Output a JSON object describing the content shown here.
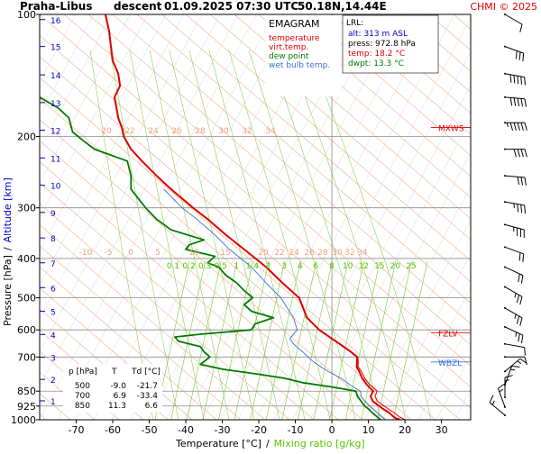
{
  "header": {
    "station": "Praha-Libus",
    "type": "descent",
    "datetime": "01.09.2025 07:30 UTC",
    "coords": "50.18N,14.44E",
    "credit": "CHMI © 2025"
  },
  "legend": {
    "title": "EMAGRAM",
    "items": [
      {
        "label": "temperature",
        "color": "#e00000"
      },
      {
        "label": "virt.temp.",
        "color": "#e00000"
      },
      {
        "label": "dew point",
        "color": "#007a00"
      },
      {
        "label": "wet bulb temp.",
        "color": "#3a6fd8"
      }
    ]
  },
  "lrl": {
    "title": "LRL:",
    "alt": "alt: 313 m ASL",
    "press": "press: 972.8 hPa",
    "temp": "temp: 18.2 °C",
    "dwpt": "dwpt: 13.3 °C",
    "colors": {
      "alt": "#0000cc",
      "press": "#000000",
      "temp": "#e00000",
      "dwpt": "#007a00"
    }
  },
  "table": {
    "headers": [
      "p [hPa]",
      "T",
      "Td [°C]"
    ],
    "rows": [
      [
        "500",
        "-9.0",
        "-21.7"
      ],
      [
        "700",
        "6.9",
        "-33.4"
      ],
      [
        "850",
        "11.3",
        "6.6"
      ]
    ]
  },
  "levels": [
    {
      "label": "MXWS",
      "p": 190
    },
    {
      "label": "FZLV",
      "p": 610
    },
    {
      "label": "WBZL",
      "p": 720
    }
  ],
  "chart_data": {
    "type": "line",
    "title": "",
    "xlabel": "Temperature [°C]",
    "xlabel_sep": "/",
    "xlabel2": "Mixing ratio [g/kg]",
    "ylabel": "Pressure [hPa]",
    "ylabel_sep": "/",
    "ylabel2": "Altitude [km]",
    "xlim": [
      -80,
      38
    ],
    "ylim": [
      1000,
      100
    ],
    "y_scale": "log",
    "x_ticks": [
      -70,
      -60,
      -50,
      -40,
      -30,
      -20,
      -10,
      0,
      10,
      20,
      30
    ],
    "p_ticks": [
      100,
      200,
      300,
      400,
      500,
      600,
      700,
      850,
      925,
      1000
    ],
    "km_ticks": [
      {
        "km": "1",
        "p": 898
      },
      {
        "km": "2",
        "p": 795
      },
      {
        "km": "3",
        "p": 701
      },
      {
        "km": "4",
        "p": 616
      },
      {
        "km": "5",
        "p": 540
      },
      {
        "km": "6",
        "p": 472
      },
      {
        "km": "7",
        "p": 410
      },
      {
        "km": "8",
        "p": 356
      },
      {
        "km": "9",
        "p": 308
      },
      {
        "km": "10",
        "p": 264
      },
      {
        "km": "11",
        "p": 226
      },
      {
        "km": "12",
        "p": 193
      },
      {
        "km": "13",
        "p": 165
      },
      {
        "km": "14",
        "p": 141
      },
      {
        "km": "15",
        "p": 120
      },
      {
        "km": "16",
        "p": 103
      }
    ],
    "mixing_ratio_labels": [
      "0.1",
      "0.2",
      "0.3",
      "0.5",
      "1",
      "1.4",
      "2",
      "3",
      "4",
      "6",
      "8",
      "10",
      "12",
      "15",
      "20",
      "25"
    ],
    "dry_adiabat_labels_upper": [
      "20",
      "22",
      "24",
      "26",
      "28",
      "30",
      "32",
      "34"
    ],
    "dry_adiabat_labels_lower": [
      "-10",
      "-5",
      "0",
      "5",
      "10",
      "15",
      "20",
      "22",
      "24",
      "26",
      "28",
      "30",
      "32",
      "34"
    ],
    "series": [
      {
        "name": "temperature",
        "color": "#e00000",
        "points": [
          [
            1000,
            18.2
          ],
          [
            985,
            17
          ],
          [
            960,
            15.6
          ],
          [
            940,
            14
          ],
          [
            925,
            13
          ],
          [
            900,
            11.2
          ],
          [
            875,
            10.6
          ],
          [
            850,
            11.3
          ],
          [
            820,
            9.6
          ],
          [
            790,
            8.3
          ],
          [
            760,
            7.5
          ],
          [
            740,
            6.8
          ],
          [
            720,
            6.9
          ],
          [
            700,
            6.9
          ],
          [
            680,
            5.2
          ],
          [
            650,
            2.1
          ],
          [
            600,
            -3.5
          ],
          [
            560,
            -6.8
          ],
          [
            500,
            -9
          ],
          [
            460,
            -13.5
          ],
          [
            420,
            -18
          ],
          [
            380,
            -24
          ],
          [
            350,
            -29
          ],
          [
            320,
            -34
          ],
          [
            300,
            -38
          ],
          [
            270,
            -44
          ],
          [
            250,
            -48
          ],
          [
            230,
            -52
          ],
          [
            215,
            -55
          ],
          [
            200,
            -57
          ],
          [
            190,
            -57.5
          ],
          [
            180,
            -58.5
          ],
          [
            170,
            -59
          ],
          [
            160,
            -59.5
          ],
          [
            150,
            -58
          ],
          [
            140,
            -58.5
          ],
          [
            130,
            -60
          ],
          [
            120,
            -60.5
          ],
          [
            110,
            -61
          ],
          [
            100,
            -62
          ]
        ]
      },
      {
        "name": "virt.temp.",
        "color": "#e00000",
        "points": [
          [
            1000,
            20
          ],
          [
            985,
            18.6
          ],
          [
            960,
            17
          ],
          [
            940,
            15.4
          ],
          [
            925,
            14.3
          ],
          [
            900,
            12.5
          ],
          [
            875,
            11.8
          ],
          [
            850,
            12.4
          ],
          [
            820,
            10.4
          ],
          [
            790,
            9
          ],
          [
            760,
            8.1
          ],
          [
            740,
            7.2
          ],
          [
            720,
            7.2
          ],
          [
            700,
            7.1
          ],
          [
            680,
            5.4
          ],
          [
            650,
            2.3
          ],
          [
            600,
            -3.4
          ],
          [
            560,
            -6.7
          ],
          [
            500,
            -8.9
          ],
          [
            460,
            -13.4
          ],
          [
            420,
            -17.9
          ],
          [
            380,
            -23.9
          ],
          [
            350,
            -28.9
          ],
          [
            320,
            -33.9
          ],
          [
            300,
            -37.9
          ],
          [
            270,
            -43.9
          ],
          [
            250,
            -47.9
          ],
          [
            230,
            -51.9
          ],
          [
            215,
            -54.9
          ],
          [
            200,
            -56.9
          ],
          [
            190,
            -57.4
          ],
          [
            180,
            -58.4
          ],
          [
            170,
            -58.9
          ],
          [
            160,
            -59.4
          ],
          [
            150,
            -57.9
          ],
          [
            140,
            -58.4
          ],
          [
            130,
            -59.9
          ],
          [
            120,
            -60.4
          ],
          [
            110,
            -60.9
          ],
          [
            100,
            -61.9
          ]
        ]
      },
      {
        "name": "dew point",
        "color": "#007a00",
        "points": [
          [
            1000,
            13.3
          ],
          [
            985,
            12.5
          ],
          [
            960,
            11
          ],
          [
            940,
            10
          ],
          [
            925,
            9
          ],
          [
            900,
            8
          ],
          [
            875,
            7
          ],
          [
            850,
            6.6
          ],
          [
            830,
            0
          ],
          [
            810,
            -8
          ],
          [
            790,
            -13
          ],
          [
            770,
            -21
          ],
          [
            750,
            -30
          ],
          [
            730,
            -36
          ],
          [
            700,
            -33.4
          ],
          [
            680,
            -35
          ],
          [
            660,
            -36
          ],
          [
            640,
            -42
          ],
          [
            625,
            -43
          ],
          [
            615,
            -36
          ],
          [
            600,
            -22
          ],
          [
            580,
            -21
          ],
          [
            560,
            -16
          ],
          [
            540,
            -22
          ],
          [
            520,
            -24
          ],
          [
            500,
            -21.7
          ],
          [
            480,
            -24
          ],
          [
            460,
            -26
          ],
          [
            440,
            -29
          ],
          [
            420,
            -31
          ],
          [
            410,
            -34
          ],
          [
            395,
            -32
          ],
          [
            380,
            -40
          ],
          [
            370,
            -39
          ],
          [
            360,
            -35
          ],
          [
            340,
            -44
          ],
          [
            320,
            -48
          ],
          [
            300,
            -51
          ],
          [
            270,
            -55
          ],
          [
            250,
            -55
          ],
          [
            230,
            -56
          ],
          [
            215,
            -65
          ],
          [
            205,
            -68
          ],
          [
            195,
            -71
          ],
          [
            180,
            -72
          ],
          [
            170,
            -75
          ],
          [
            160,
            -80
          ],
          [
            150,
            -82
          ]
        ]
      },
      {
        "name": "wet bulb temp.",
        "color": "#3a6fd8",
        "points": [
          [
            1000,
            14.6
          ],
          [
            985,
            13.7
          ],
          [
            960,
            12.3
          ],
          [
            940,
            11.2
          ],
          [
            925,
            10.3
          ],
          [
            900,
            9
          ],
          [
            875,
            8
          ],
          [
            850,
            7.8
          ],
          [
            820,
            5
          ],
          [
            790,
            2.5
          ],
          [
            760,
            -1
          ],
          [
            740,
            -3
          ],
          [
            720,
            -5
          ],
          [
            700,
            -6.5
          ],
          [
            680,
            -8
          ],
          [
            650,
            -10.5
          ],
          [
            630,
            -11.5
          ],
          [
            600,
            -9.5
          ],
          [
            560,
            -10.5
          ],
          [
            500,
            -14
          ],
          [
            460,
            -18
          ],
          [
            420,
            -22
          ],
          [
            380,
            -28
          ],
          [
            350,
            -32
          ],
          [
            320,
            -37
          ],
          [
            300,
            -41
          ],
          [
            270,
            -46
          ]
        ]
      }
    ],
    "wind_profile": [
      {
        "p": 100,
        "dir": 300,
        "spd": 10
      },
      {
        "p": 120,
        "dir": 290,
        "spd": 30
      },
      {
        "p": 140,
        "dir": 280,
        "spd": 50
      },
      {
        "p": 160,
        "dir": 275,
        "spd": 50
      },
      {
        "p": 185,
        "dir": 270,
        "spd": 45
      },
      {
        "p": 215,
        "dir": 270,
        "spd": 40
      },
      {
        "p": 250,
        "dir": 275,
        "spd": 30
      },
      {
        "p": 290,
        "dir": 280,
        "spd": 25
      },
      {
        "p": 330,
        "dir": 285,
        "spd": 25
      },
      {
        "p": 375,
        "dir": 290,
        "spd": 20
      },
      {
        "p": 420,
        "dir": 295,
        "spd": 20
      },
      {
        "p": 470,
        "dir": 300,
        "spd": 15
      },
      {
        "p": 530,
        "dir": 300,
        "spd": 15
      },
      {
        "p": 590,
        "dir": 295,
        "spd": 15
      },
      {
        "p": 650,
        "dir": 280,
        "spd": 10
      },
      {
        "p": 700,
        "dir": 270,
        "spd": 10
      },
      {
        "p": 760,
        "dir": 230,
        "spd": 5
      },
      {
        "p": 820,
        "dir": 200,
        "spd": 5
      },
      {
        "p": 880,
        "dir": 180,
        "spd": 5
      },
      {
        "p": 930,
        "dir": 160,
        "spd": 5
      },
      {
        "p": 975,
        "dir": 130,
        "spd": 5
      }
    ]
  }
}
